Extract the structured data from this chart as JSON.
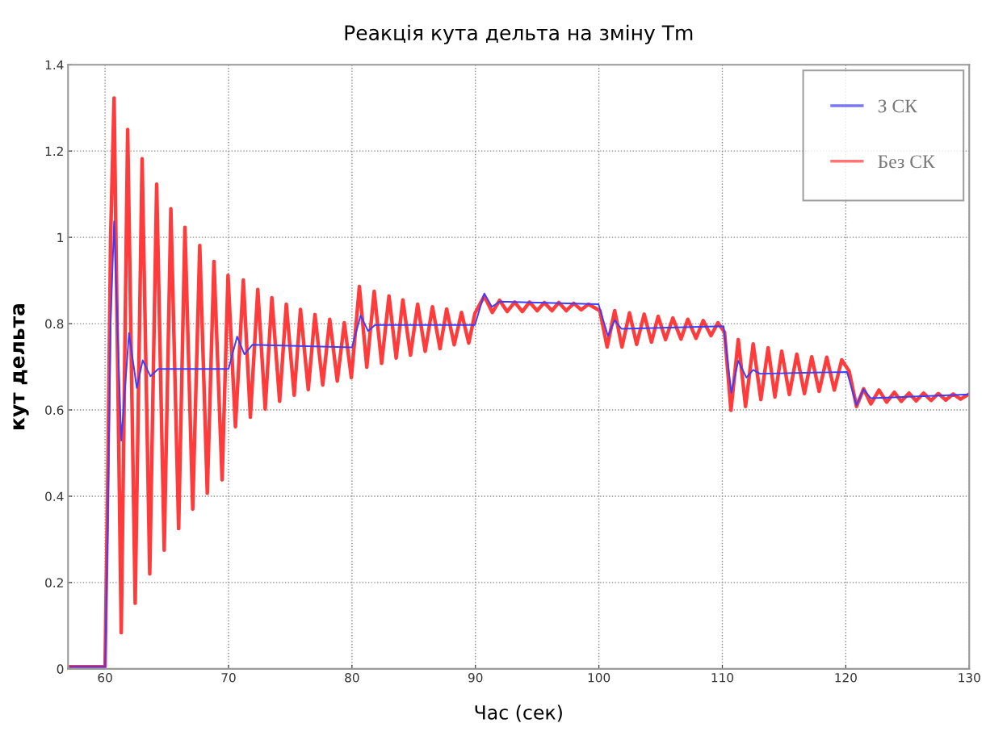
{
  "chart_data": {
    "type": "line",
    "title": "Реакція кута дельта на зміну Tm",
    "xlabel": "Час (сек)",
    "ylabel": "кут дельта",
    "xlim": [
      57,
      130
    ],
    "ylim": [
      0,
      1.4
    ],
    "xticks": [
      60,
      70,
      80,
      90,
      100,
      110,
      120,
      130
    ],
    "yticks": [
      0,
      0.2,
      0.4,
      0.6,
      0.8,
      1,
      1.2,
      1.4
    ],
    "grid": true,
    "legend": "top right",
    "line_style": "solid",
    "series": [
      {
        "name": "Без СК",
        "color": "#ff3b3b",
        "x": [
          57.2,
          60.0,
          60.2,
          60.45,
          60.73,
          61.31,
          61.83,
          62.44,
          63.0,
          63.62,
          64.18,
          64.79,
          65.33,
          65.96,
          66.47,
          67.1,
          67.67,
          68.28,
          68.82,
          69.48,
          69.96,
          70.56,
          71.2,
          71.77,
          72.37,
          72.97,
          73.51,
          74.14,
          74.68,
          75.32,
          75.83,
          76.46,
          77.0,
          77.63,
          78.2,
          78.81,
          79.38,
          79.95,
          80.6,
          81.2,
          81.8,
          82.4,
          83.0,
          83.58,
          84.12,
          84.74,
          85.32,
          85.93,
          86.52,
          87.13,
          87.67,
          88.28,
          88.87,
          89.46,
          89.96,
          90.72,
          91.37,
          91.96,
          92.57,
          93.18,
          93.8,
          94.38,
          95.0,
          95.58,
          96.2,
          96.75,
          97.36,
          97.97,
          98.56,
          99.15,
          100.08,
          100.67,
          101.28,
          101.87,
          102.48,
          103.06,
          103.67,
          104.26,
          104.8,
          105.4,
          105.99,
          106.65,
          107.2,
          107.87,
          108.45,
          109.08,
          109.64,
          110.18,
          110.7,
          111.29,
          111.88,
          112.5,
          113.12,
          113.71,
          114.26,
          114.81,
          115.43,
          116.03,
          116.65,
          117.24,
          117.84,
          118.46,
          119.07,
          119.67,
          120.27,
          120.87,
          121.44,
          122.03,
          122.69,
          123.31,
          123.93,
          124.5,
          125.12,
          125.7,
          126.3,
          126.9,
          127.5,
          128.1,
          128.7,
          129.3,
          130.0
        ],
        "values": [
          0.005,
          0.005,
          0.4,
          1.0,
          1.323,
          0.084,
          1.25,
          0.152,
          1.182,
          0.22,
          1.123,
          0.275,
          1.066,
          0.325,
          1.023,
          0.37,
          0.981,
          0.407,
          0.944,
          0.438,
          0.912,
          0.561,
          0.901,
          0.583,
          0.879,
          0.602,
          0.86,
          0.62,
          0.845,
          0.634,
          0.833,
          0.647,
          0.821,
          0.658,
          0.81,
          0.667,
          0.802,
          0.675,
          0.886,
          0.699,
          0.875,
          0.708,
          0.864,
          0.72,
          0.855,
          0.727,
          0.845,
          0.736,
          0.839,
          0.742,
          0.834,
          0.751,
          0.826,
          0.755,
          0.824,
          0.864,
          0.826,
          0.854,
          0.828,
          0.85,
          0.828,
          0.85,
          0.83,
          0.849,
          0.83,
          0.849,
          0.83,
          0.847,
          0.832,
          0.845,
          0.83,
          0.746,
          0.83,
          0.746,
          0.825,
          0.752,
          0.822,
          0.757,
          0.817,
          0.763,
          0.813,
          0.764,
          0.81,
          0.766,
          0.807,
          0.772,
          0.802,
          0.78,
          0.599,
          0.763,
          0.608,
          0.753,
          0.624,
          0.744,
          0.63,
          0.736,
          0.636,
          0.729,
          0.638,
          0.723,
          0.643,
          0.722,
          0.646,
          0.716,
          0.69,
          0.608,
          0.649,
          0.614,
          0.646,
          0.618,
          0.641,
          0.62,
          0.639,
          0.621,
          0.639,
          0.622,
          0.638,
          0.623,
          0.637,
          0.625,
          0.637
        ]
      },
      {
        "name": "З СК",
        "color": "#3d3dff",
        "x": [
          57.2,
          60.0,
          60.2,
          60.45,
          60.73,
          61.31,
          61.94,
          62.57,
          63.05,
          63.68,
          64.3,
          70.0,
          70.7,
          71.29,
          71.93,
          80.0,
          80.7,
          81.3,
          81.87,
          89.96,
          90.72,
          91.33,
          91.96,
          99.97,
          100.74,
          101.28,
          101.83,
          110.1,
          110.73,
          111.29,
          111.95,
          112.5,
          113.05,
          120.1,
          120.87,
          121.44,
          122.03,
          130.0
        ],
        "values": [
          0.005,
          0.005,
          0.3,
          0.8,
          1.037,
          0.529,
          0.778,
          0.651,
          0.715,
          0.678,
          0.695,
          0.695,
          0.77,
          0.729,
          0.751,
          0.745,
          0.819,
          0.783,
          0.797,
          0.797,
          0.87,
          0.839,
          0.851,
          0.845,
          0.771,
          0.808,
          0.788,
          0.794,
          0.64,
          0.714,
          0.675,
          0.693,
          0.684,
          0.688,
          0.611,
          0.648,
          0.627,
          0.636
        ]
      }
    ]
  }
}
